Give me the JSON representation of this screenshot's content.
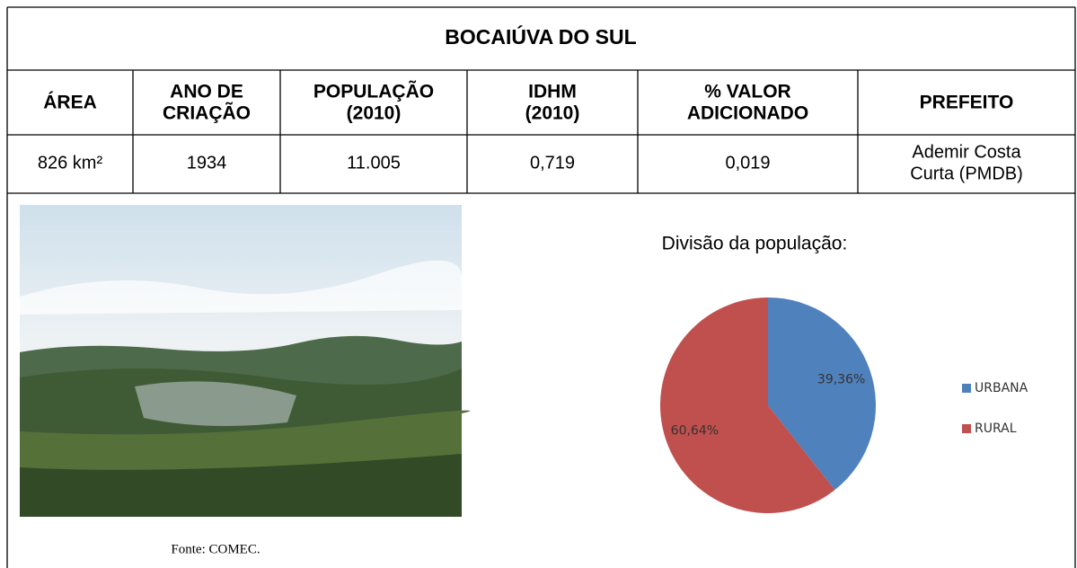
{
  "table": {
    "title": "BOCAIÚVA DO SUL",
    "header": [
      [
        "ÁREA"
      ],
      [
        "ANO DE",
        "CRIAÇÃO"
      ],
      [
        "POPULAÇÃO",
        "(2010)"
      ],
      [
        "IDHM",
        "(2010)"
      ],
      [
        "% VALOR",
        "ADICIONADO"
      ],
      [
        "PREFEITO"
      ]
    ],
    "row": [
      [
        "826 km²"
      ],
      [
        "1934"
      ],
      [
        "11.005"
      ],
      [
        "0,719"
      ],
      [
        "0,019"
      ],
      [
        "Ademir Costa",
        "Curta (PMDB)"
      ]
    ]
  },
  "photo_caption": "Fonte: COMEC.",
  "chart_data": {
    "type": "pie",
    "title": "Divisão da população:",
    "categories": [
      "URBANA",
      "RURAL"
    ],
    "values": [
      39.36,
      60.64
    ],
    "value_labels": [
      "39,36%",
      "60,64%"
    ],
    "colors": [
      "#4f81bd",
      "#c0504d"
    ],
    "legend": "right"
  }
}
